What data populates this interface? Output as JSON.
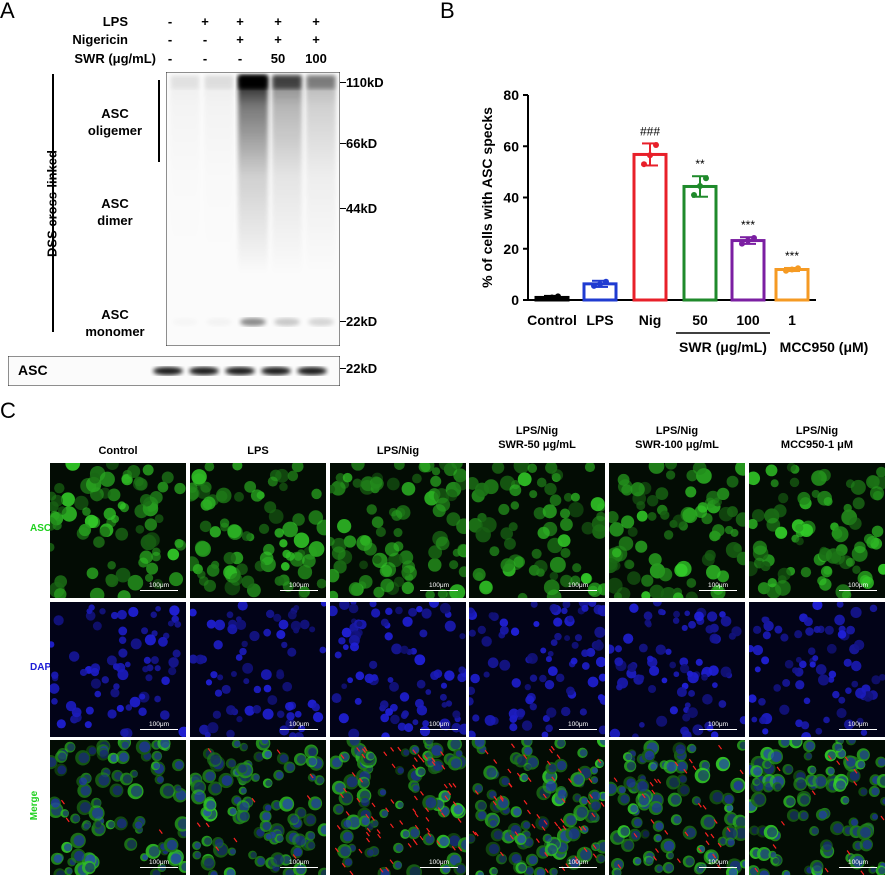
{
  "panel_a": {
    "letter": "A",
    "rows": [
      {
        "label": "LPS",
        "values": [
          "-",
          "+",
          "+",
          "+",
          "+"
        ]
      },
      {
        "label": "Nigericin",
        "values": [
          "-",
          "-",
          "+",
          "+",
          "+"
        ]
      },
      {
        "label": "SWR (μg/mL)",
        "values": [
          "-",
          "-",
          "-",
          "50",
          "100"
        ]
      }
    ],
    "side_label": "DSS cross-linked",
    "bands": [
      {
        "line1": "ASC",
        "line2": "oligemer"
      },
      {
        "line1": "ASC",
        "line2": "dimer"
      },
      {
        "line1": "ASC",
        "line2": "monomer"
      }
    ],
    "markers": [
      "110kD",
      "66kD",
      "44kD",
      "22kD"
    ],
    "loading_label": "ASC",
    "loading_marker": "22kD",
    "blot_intensity": {
      "high_mw": [
        0.05,
        0.06,
        0.95,
        0.5,
        0.3
      ],
      "monomer": [
        0.02,
        0.03,
        0.45,
        0.2,
        0.15
      ],
      "loading": [
        0.9,
        0.9,
        0.9,
        0.9,
        0.9
      ]
    }
  },
  "panel_b": {
    "letter": "B",
    "chart_data": {
      "type": "bar",
      "categories": [
        "Control",
        "LPS",
        "Nig",
        "50",
        "100",
        "1"
      ],
      "values": [
        1.0,
        6.3,
        56.8,
        44.3,
        23.2,
        11.9
      ],
      "errors": [
        0.6,
        1.2,
        4.3,
        4.0,
        1.3,
        0.6
      ],
      "points": [
        [
          0.6,
          1.0,
          1.4
        ],
        [
          5.5,
          6.2,
          7.1
        ],
        [
          53.0,
          56.5,
          60.5
        ],
        [
          41.0,
          44.5,
          47.5
        ],
        [
          22.0,
          23.2,
          24.2
        ],
        [
          11.4,
          11.9,
          12.4
        ]
      ],
      "colors": [
        "#000000",
        "#1f3bd1",
        "#e8202a",
        "#1f8a2b",
        "#7b1fa2",
        "#f59a23"
      ],
      "annotations": [
        "",
        "",
        "###",
        "**",
        "***",
        "***"
      ],
      "ylabel": "% of cells with ASC specks",
      "ylim": [
        0,
        80
      ],
      "yticks": [
        0,
        20,
        40,
        60,
        80
      ],
      "group_labels": [
        "SWR (μg/mL)",
        "MCC950 (μM)"
      ]
    }
  },
  "panel_c": {
    "letter": "C",
    "columns": [
      {
        "line1": "Control",
        "line2": ""
      },
      {
        "line1": "LPS",
        "line2": ""
      },
      {
        "line1": "LPS/Nig",
        "line2": ""
      },
      {
        "line1": "LPS/Nig",
        "line2": "SWR-50 μg/mL"
      },
      {
        "line1": "LPS/Nig",
        "line2": "SWR-100 μg/mL"
      },
      {
        "line1": "LPS/Nig",
        "line2": "MCC950-1 μM"
      }
    ],
    "rows": [
      {
        "label": "ASC",
        "color": "#1fd11f"
      },
      {
        "label": "DAPI",
        "color": "#1c1cd6"
      },
      {
        "label": "Merge",
        "color": "#1fd11f"
      }
    ],
    "scale_bar": "100μm",
    "speck_arrow_density": [
      0.05,
      0.15,
      1.0,
      0.8,
      0.45,
      0.2
    ]
  }
}
